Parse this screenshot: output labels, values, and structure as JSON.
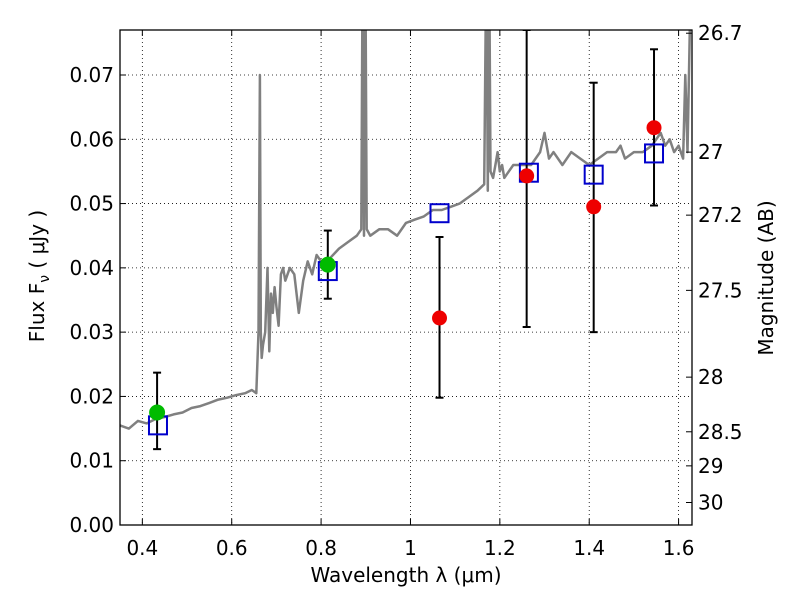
{
  "chart_data": {
    "type": "scatter",
    "xlabel": "Wavelength  λ (μm)",
    "ylabel": "Flux  F",
    "ylabel_sub": "ν",
    "ylabel_unit": " ( μJy )",
    "y2label": "Magnitude (AB)",
    "xlim": [
      0.35,
      1.63
    ],
    "ylim": [
      0.0,
      0.077
    ],
    "grid": true,
    "x_ticks": [
      0.4,
      0.6,
      0.8,
      1.0,
      1.2,
      1.4,
      1.6
    ],
    "x_tick_labels": [
      "0.4",
      "0.6",
      "0.8",
      "1",
      "1.2",
      "1.4",
      "1.6"
    ],
    "y_ticks": [
      0.0,
      0.01,
      0.02,
      0.03,
      0.04,
      0.05,
      0.06,
      0.07
    ],
    "y_tick_labels": [
      "0.00",
      "0.01",
      "0.02",
      "0.03",
      "0.04",
      "0.05",
      "0.06",
      "0.07"
    ],
    "y2_ticks": [
      {
        "label": "26.7",
        "flux": 0.0765
      },
      {
        "label": "27",
        "flux": 0.058
      },
      {
        "label": "27.2",
        "flux": 0.0482
      },
      {
        "label": "27.5",
        "flux": 0.0365
      },
      {
        "label": "28",
        "flux": 0.023
      },
      {
        "label": "28.5",
        "flux": 0.0145
      },
      {
        "label": "29",
        "flux": 0.0092
      },
      {
        "label": "30",
        "flux": 0.0035
      }
    ],
    "colors": {
      "spectrum": "#808080",
      "model_box": "#0000cc",
      "detection": "#00bb00",
      "measured": "#ee0000",
      "errorbar": "#000000"
    },
    "model_flux": {
      "x": [
        0.435,
        0.815,
        1.065,
        1.265,
        1.41,
        1.545
      ],
      "y": [
        0.0155,
        0.0395,
        0.0485,
        0.0548,
        0.0545,
        0.0578
      ]
    },
    "detections": {
      "x": [
        0.433,
        0.815
      ],
      "y": [
        0.0175,
        0.0405
      ],
      "err_low": [
        0.0118,
        0.0352
      ],
      "err_high": [
        0.0237,
        0.0458
      ]
    },
    "measurements": {
      "x": [
        1.065,
        1.26,
        1.41,
        1.545
      ],
      "y": [
        0.0322,
        0.0543,
        0.0495,
        0.0618
      ],
      "err_low": [
        0.0198,
        0.0308,
        0.03,
        0.0497
      ],
      "err_high": [
        0.0448,
        0.077,
        0.0688,
        0.074
      ]
    },
    "spectrum": {
      "x": [
        0.35,
        0.37,
        0.39,
        0.41,
        0.43,
        0.45,
        0.47,
        0.49,
        0.51,
        0.53,
        0.55,
        0.57,
        0.59,
        0.61,
        0.63,
        0.645,
        0.655,
        0.66,
        0.663,
        0.665,
        0.667,
        0.67,
        0.675,
        0.68,
        0.684,
        0.688,
        0.692,
        0.696,
        0.7,
        0.705,
        0.71,
        0.715,
        0.72,
        0.73,
        0.74,
        0.75,
        0.76,
        0.77,
        0.78,
        0.79,
        0.8,
        0.82,
        0.84,
        0.86,
        0.88,
        0.89,
        0.893,
        0.896,
        0.899,
        0.902,
        0.91,
        0.93,
        0.95,
        0.97,
        0.99,
        1.01,
        1.03,
        1.05,
        1.07,
        1.09,
        1.11,
        1.13,
        1.15,
        1.165,
        1.17,
        1.173,
        1.176,
        1.179,
        1.185,
        1.19,
        1.195,
        1.2,
        1.205,
        1.21,
        1.22,
        1.23,
        1.25,
        1.27,
        1.29,
        1.3,
        1.31,
        1.32,
        1.34,
        1.36,
        1.38,
        1.4,
        1.42,
        1.44,
        1.46,
        1.47,
        1.48,
        1.5,
        1.52,
        1.54,
        1.56,
        1.57,
        1.58,
        1.59,
        1.6,
        1.61,
        1.615,
        1.62,
        1.625,
        1.63
      ],
      "y": [
        0.0155,
        0.015,
        0.0162,
        0.0158,
        0.0165,
        0.0168,
        0.0172,
        0.0175,
        0.0182,
        0.0185,
        0.019,
        0.0195,
        0.0198,
        0.0202,
        0.0205,
        0.021,
        0.0205,
        0.03,
        0.07,
        0.03,
        0.026,
        0.028,
        0.03,
        0.04,
        0.027,
        0.036,
        0.033,
        0.037,
        0.034,
        0.031,
        0.039,
        0.04,
        0.038,
        0.04,
        0.039,
        0.033,
        0.038,
        0.041,
        0.039,
        0.042,
        0.041,
        0.0415,
        0.043,
        0.044,
        0.045,
        0.046,
        0.09,
        0.045,
        0.09,
        0.046,
        0.045,
        0.046,
        0.046,
        0.045,
        0.047,
        0.0475,
        0.048,
        0.049,
        0.049,
        0.0495,
        0.05,
        0.051,
        0.052,
        0.053,
        0.09,
        0.052,
        0.09,
        0.055,
        0.054,
        0.056,
        0.058,
        0.055,
        0.056,
        0.054,
        0.055,
        0.056,
        0.056,
        0.056,
        0.058,
        0.061,
        0.057,
        0.058,
        0.056,
        0.058,
        0.057,
        0.056,
        0.057,
        0.058,
        0.058,
        0.059,
        0.057,
        0.058,
        0.058,
        0.059,
        0.061,
        0.059,
        0.06,
        0.058,
        0.059,
        0.057,
        0.07,
        0.058,
        0.077,
        0.08
      ]
    }
  }
}
